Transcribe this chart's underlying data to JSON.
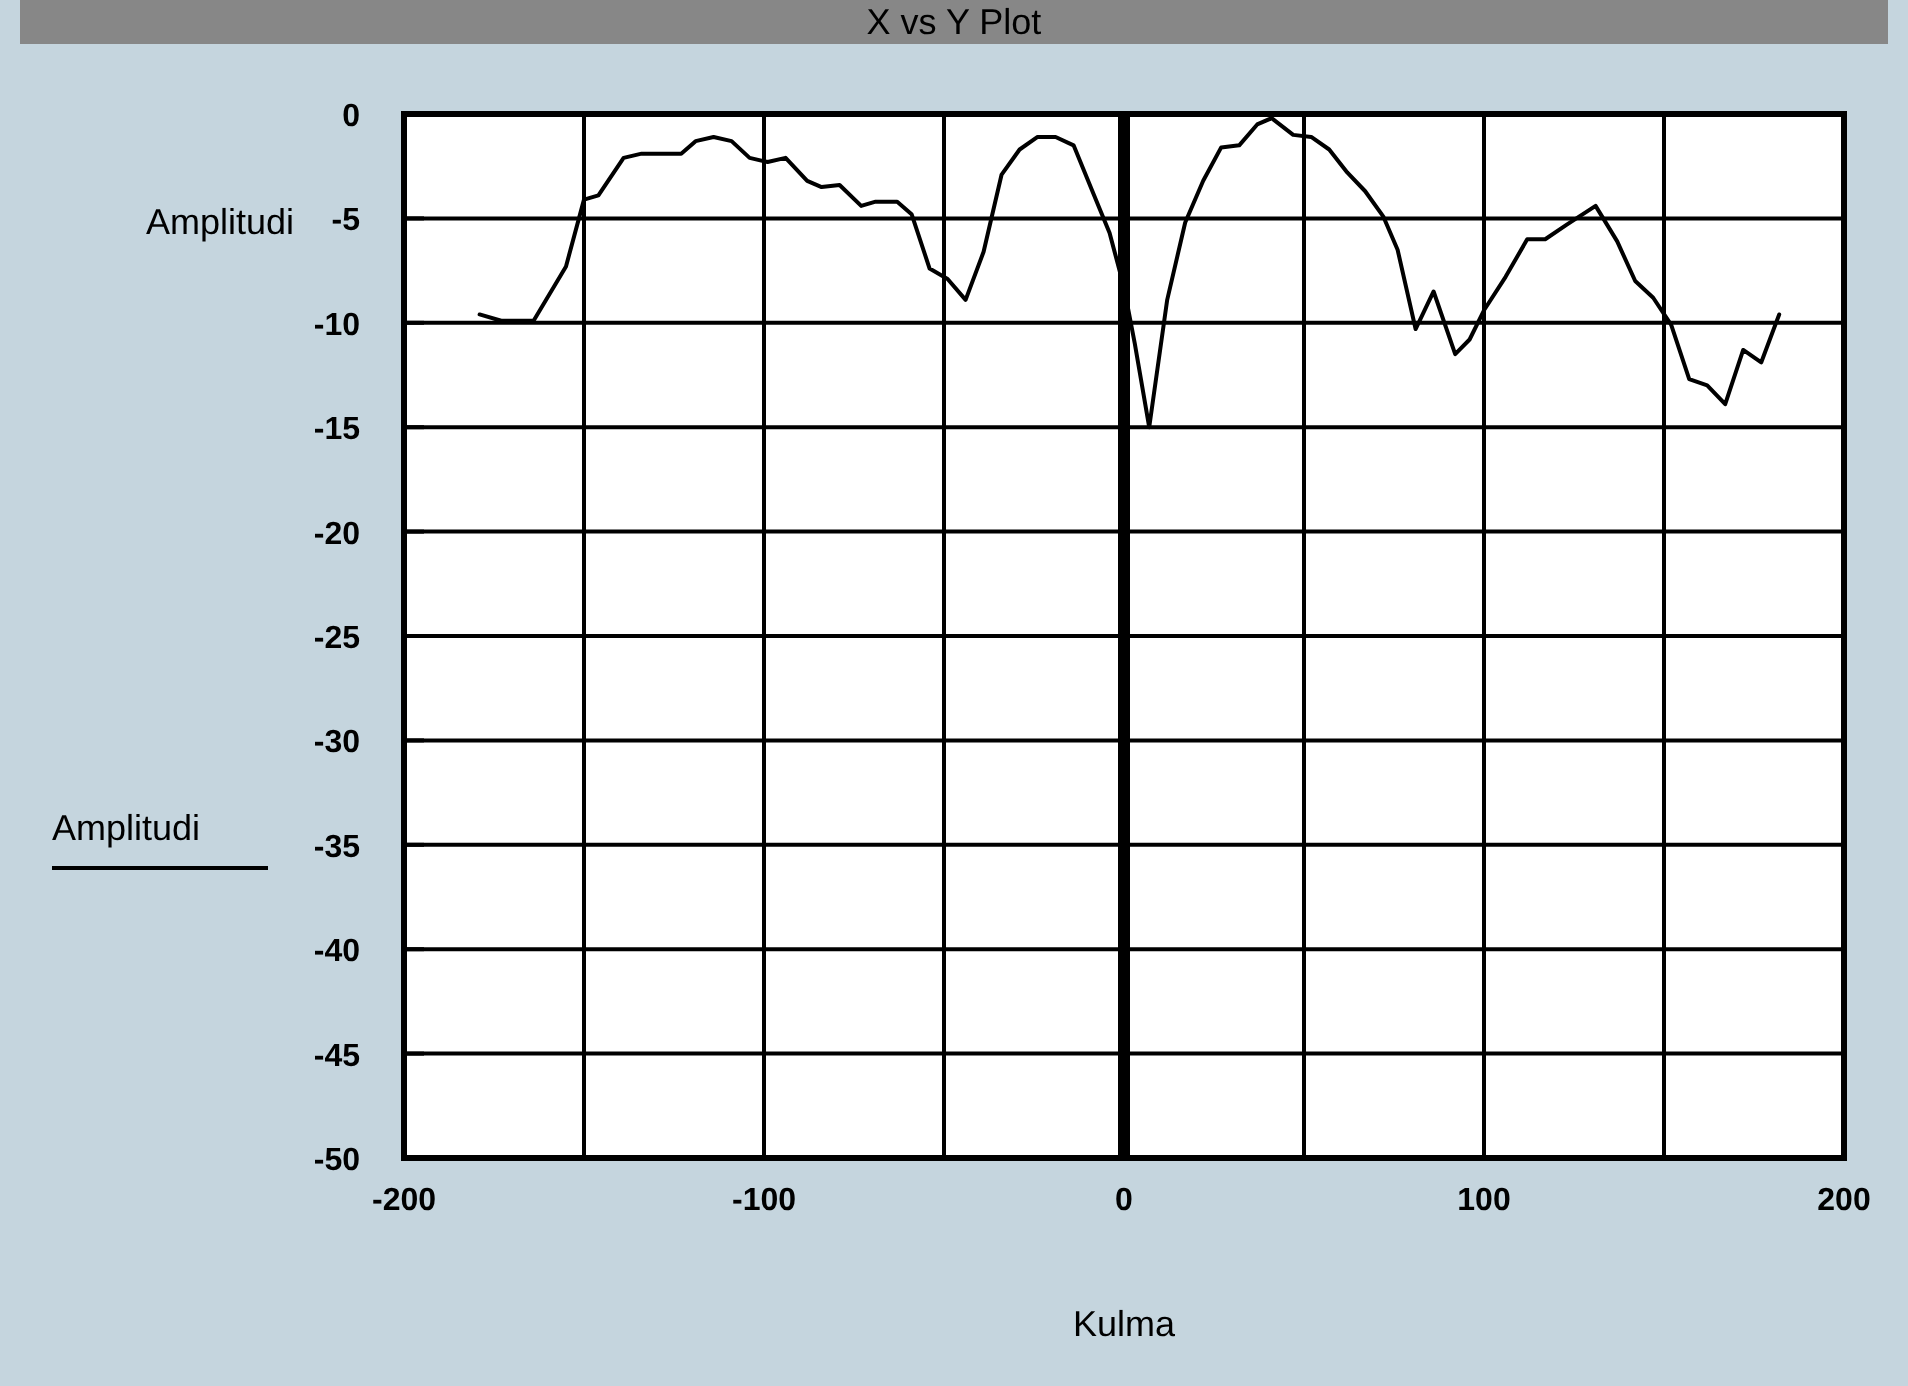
{
  "chart_data": {
    "type": "line",
    "title": "X vs Y Plot",
    "xlabel": "Kulma",
    "ylabel": "Amplitudi",
    "xlim": [
      -200,
      200
    ],
    "xticks": [
      -200,
      {
        "value": -150,
        "label": null
      },
      -100,
      {
        "value": -50,
        "label": null
      },
      0,
      {
        "value": 50,
        "label": null
      },
      100,
      {
        "value": 150,
        "label": null
      },
      200
    ],
    "ylim": [
      -50,
      0
    ],
    "yticks": [
      0,
      -5,
      -10,
      -15,
      -20,
      -25,
      -30,
      -35,
      -40,
      -45,
      -50
    ],
    "grid": true,
    "legend": "left",
    "line_style": "solid",
    "marker": "none",
    "ref_lines": [
      {
        "axis": "x",
        "value": 0,
        "label": null
      }
    ],
    "series": [
      {
        "name": "Amplitudi",
        "color": "#000000",
        "x": [
          -179,
          -173,
          -164,
          -155,
          -150,
          -146,
          -139,
          -134,
          -123,
          -119,
          -114,
          -109,
          -104,
          -99,
          -94,
          -88,
          -84,
          -79,
          -73,
          -69,
          -63,
          -59,
          -54,
          -49,
          -44,
          -39,
          -34,
          -29,
          -24,
          -19,
          -14,
          -9,
          -4,
          0,
          3,
          7,
          12,
          17,
          22,
          27,
          32,
          37,
          41,
          47,
          52,
          57,
          62,
          67,
          72,
          76,
          81,
          86,
          92,
          96,
          100,
          106,
          112,
          117,
          123,
          131,
          137,
          142,
          147,
          152,
          157,
          162,
          167,
          172,
          177,
          182
        ],
        "values": [
          -9.6,
          -9.9,
          -9.9,
          -7.3,
          -4.1,
          -3.9,
          -2.1,
          -1.9,
          -1.9,
          -1.3,
          -1.1,
          -1.3,
          -2.1,
          -2.3,
          -2.1,
          -3.2,
          -3.5,
          -3.4,
          -4.4,
          -4.2,
          -4.2,
          -4.8,
          -7.4,
          -7.9,
          -8.9,
          -6.6,
          -2.9,
          -1.7,
          -1.1,
          -1.1,
          -1.5,
          -3.6,
          -5.7,
          -8.3,
          -11,
          -15,
          -8.9,
          -5.2,
          -3.2,
          -1.6,
          -1.5,
          -0.5,
          -0.2,
          -1,
          -1.1,
          -1.7,
          -2.8,
          -3.7,
          -4.9,
          -6.5,
          -10.3,
          -8.5,
          -11.5,
          -10.8,
          -9.4,
          -7.8,
          -6,
          -6,
          -5.3,
          -4.4,
          -6.1,
          -8,
          -8.8,
          -10.1,
          -12.7,
          -13,
          -13.9,
          -11.3,
          -11.9,
          -9.6
        ]
      }
    ]
  }
}
